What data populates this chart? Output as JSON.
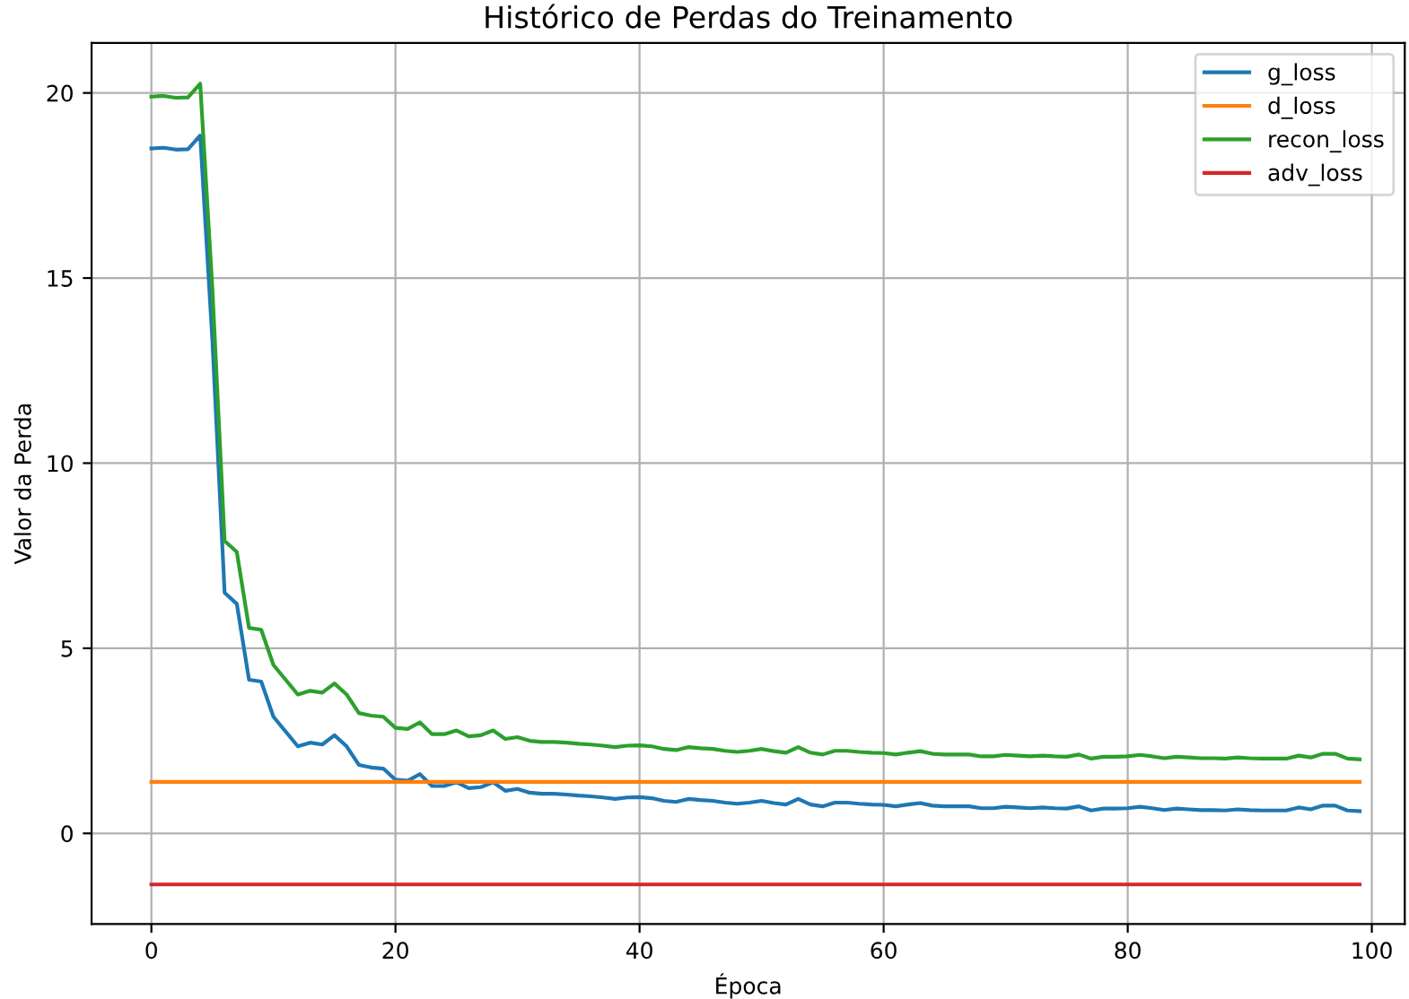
{
  "chart_data": {
    "type": "line",
    "title": "Histórico de Perdas do Treinamento",
    "xlabel": "Época",
    "ylabel": "Valor da Perda",
    "x": [
      0,
      1,
      2,
      3,
      4,
      5,
      6,
      7,
      8,
      9,
      10,
      11,
      12,
      13,
      14,
      15,
      16,
      17,
      18,
      19,
      20,
      21,
      22,
      23,
      24,
      25,
      26,
      27,
      28,
      29,
      30,
      31,
      32,
      33,
      34,
      35,
      36,
      37,
      38,
      39,
      40,
      41,
      42,
      43,
      44,
      45,
      46,
      47,
      48,
      49,
      50,
      51,
      52,
      53,
      54,
      55,
      56,
      57,
      58,
      59,
      60,
      61,
      62,
      63,
      64,
      65,
      66,
      67,
      68,
      69,
      70,
      71,
      72,
      73,
      74,
      75,
      76,
      77,
      78,
      79,
      80,
      81,
      82,
      83,
      84,
      85,
      86,
      87,
      88,
      89,
      90,
      91,
      92,
      93,
      94,
      95,
      96,
      97,
      98,
      99
    ],
    "series": [
      {
        "name": "g_loss",
        "color": "#1f77b4",
        "values": [
          18.5,
          18.52,
          18.47,
          18.48,
          18.85,
          13.3,
          6.5,
          6.2,
          4.15,
          4.1,
          3.15,
          2.75,
          2.35,
          2.45,
          2.4,
          2.65,
          2.35,
          1.85,
          1.78,
          1.75,
          1.45,
          1.42,
          1.6,
          1.28,
          1.28,
          1.38,
          1.22,
          1.25,
          1.38,
          1.15,
          1.2,
          1.1,
          1.07,
          1.07,
          1.05,
          1.02,
          1.0,
          0.97,
          0.93,
          0.97,
          0.98,
          0.95,
          0.88,
          0.85,
          0.93,
          0.9,
          0.88,
          0.83,
          0.8,
          0.83,
          0.88,
          0.82,
          0.78,
          0.93,
          0.78,
          0.73,
          0.83,
          0.83,
          0.8,
          0.78,
          0.77,
          0.73,
          0.78,
          0.82,
          0.75,
          0.73,
          0.73,
          0.73,
          0.68,
          0.68,
          0.72,
          0.7,
          0.68,
          0.7,
          0.68,
          0.67,
          0.73,
          0.62,
          0.67,
          0.67,
          0.68,
          0.72,
          0.68,
          0.63,
          0.67,
          0.65,
          0.63,
          0.63,
          0.62,
          0.65,
          0.63,
          0.62,
          0.62,
          0.62,
          0.7,
          0.65,
          0.75,
          0.75,
          0.62,
          0.6
        ]
      },
      {
        "name": "d_loss",
        "color": "#ff7f0e",
        "values": [
          1.39,
          1.39,
          1.39,
          1.39,
          1.39,
          1.39,
          1.39,
          1.39,
          1.39,
          1.39,
          1.39,
          1.39,
          1.39,
          1.39,
          1.39,
          1.39,
          1.39,
          1.39,
          1.39,
          1.39,
          1.39,
          1.39,
          1.39,
          1.39,
          1.39,
          1.39,
          1.39,
          1.39,
          1.39,
          1.39,
          1.39,
          1.39,
          1.39,
          1.39,
          1.39,
          1.39,
          1.39,
          1.39,
          1.39,
          1.39,
          1.39,
          1.39,
          1.39,
          1.39,
          1.39,
          1.39,
          1.39,
          1.39,
          1.39,
          1.39,
          1.39,
          1.39,
          1.39,
          1.39,
          1.39,
          1.39,
          1.39,
          1.39,
          1.39,
          1.39,
          1.39,
          1.39,
          1.39,
          1.39,
          1.39,
          1.39,
          1.39,
          1.39,
          1.39,
          1.39,
          1.39,
          1.39,
          1.39,
          1.39,
          1.39,
          1.39,
          1.39,
          1.39,
          1.39,
          1.39,
          1.39,
          1.39,
          1.39,
          1.39,
          1.39,
          1.39,
          1.39,
          1.39,
          1.39,
          1.39,
          1.39,
          1.39,
          1.39,
          1.39,
          1.39,
          1.39,
          1.39,
          1.39,
          1.39,
          1.39
        ]
      },
      {
        "name": "recon_loss",
        "color": "#2ca02c",
        "values": [
          19.9,
          19.92,
          19.87,
          19.88,
          20.25,
          14.7,
          7.9,
          7.6,
          5.55,
          5.5,
          4.55,
          4.15,
          3.75,
          3.85,
          3.8,
          4.05,
          3.75,
          3.25,
          3.18,
          3.15,
          2.85,
          2.82,
          3.0,
          2.68,
          2.68,
          2.78,
          2.62,
          2.65,
          2.78,
          2.55,
          2.6,
          2.5,
          2.47,
          2.47,
          2.45,
          2.42,
          2.4,
          2.37,
          2.33,
          2.37,
          2.38,
          2.35,
          2.28,
          2.25,
          2.33,
          2.3,
          2.28,
          2.23,
          2.2,
          2.23,
          2.28,
          2.22,
          2.18,
          2.33,
          2.18,
          2.13,
          2.23,
          2.23,
          2.2,
          2.18,
          2.17,
          2.13,
          2.18,
          2.22,
          2.15,
          2.13,
          2.13,
          2.13,
          2.08,
          2.08,
          2.12,
          2.1,
          2.08,
          2.1,
          2.08,
          2.07,
          2.13,
          2.02,
          2.07,
          2.07,
          2.08,
          2.12,
          2.08,
          2.03,
          2.07,
          2.05,
          2.03,
          2.03,
          2.02,
          2.05,
          2.03,
          2.02,
          2.02,
          2.02,
          2.1,
          2.05,
          2.15,
          2.15,
          2.02,
          2.0
        ]
      },
      {
        "name": "adv_loss",
        "color": "#d62728",
        "values": [
          -1.38,
          -1.38,
          -1.38,
          -1.38,
          -1.38,
          -1.38,
          -1.38,
          -1.38,
          -1.38,
          -1.38,
          -1.38,
          -1.38,
          -1.38,
          -1.38,
          -1.38,
          -1.38,
          -1.38,
          -1.38,
          -1.38,
          -1.38,
          -1.38,
          -1.38,
          -1.38,
          -1.38,
          -1.38,
          -1.38,
          -1.38,
          -1.38,
          -1.38,
          -1.38,
          -1.38,
          -1.38,
          -1.38,
          -1.38,
          -1.38,
          -1.38,
          -1.38,
          -1.38,
          -1.38,
          -1.38,
          -1.38,
          -1.38,
          -1.38,
          -1.38,
          -1.38,
          -1.38,
          -1.38,
          -1.38,
          -1.38,
          -1.38,
          -1.38,
          -1.38,
          -1.38,
          -1.38,
          -1.38,
          -1.38,
          -1.38,
          -1.38,
          -1.38,
          -1.38,
          -1.38,
          -1.38,
          -1.38,
          -1.38,
          -1.38,
          -1.38,
          -1.38,
          -1.38,
          -1.38,
          -1.38,
          -1.38,
          -1.38,
          -1.38,
          -1.38,
          -1.38,
          -1.38,
          -1.38,
          -1.38,
          -1.38,
          -1.38,
          -1.38,
          -1.38,
          -1.38,
          -1.38,
          -1.38,
          -1.38,
          -1.38,
          -1.38,
          -1.38,
          -1.38,
          -1.38,
          -1.38,
          -1.38,
          -1.38,
          -1.38,
          -1.38,
          -1.38,
          -1.38,
          -1.38,
          -1.38
        ]
      }
    ],
    "xlim": [
      -4.9,
      102.7
    ],
    "ylim": [
      -2.45,
      21.35
    ],
    "xticks": [
      0,
      20,
      40,
      60,
      80,
      100
    ],
    "yticks": [
      0,
      5,
      10,
      15,
      20
    ],
    "grid": true,
    "legend": "top right"
  }
}
